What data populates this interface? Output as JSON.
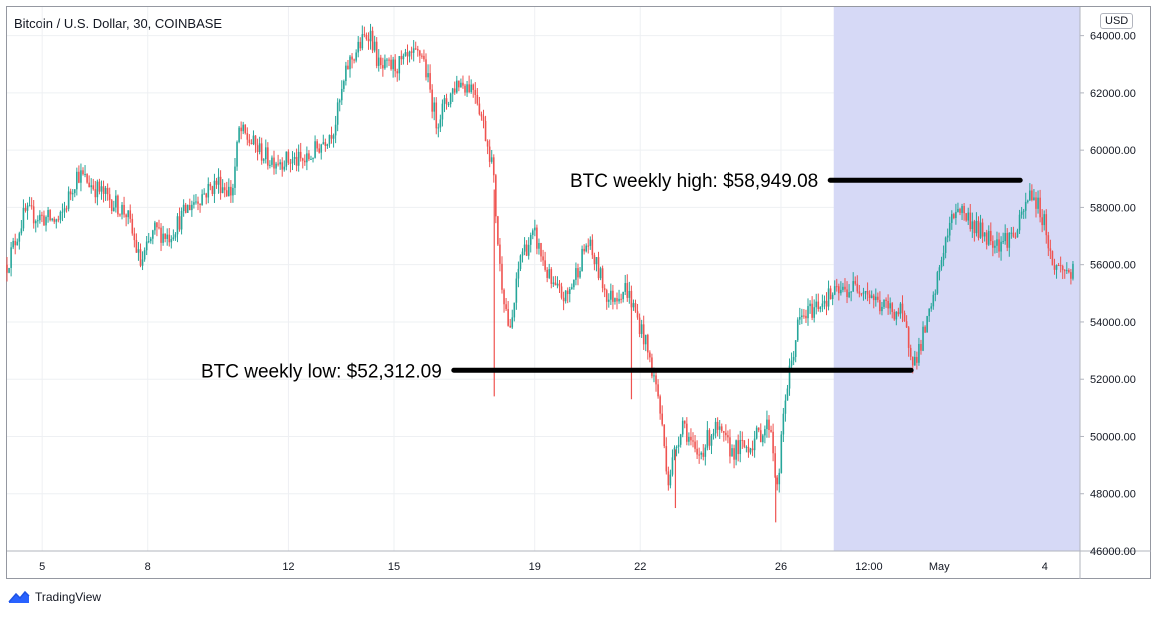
{
  "header": {
    "title": "Bitcoin / U.S. Dollar, 30, COINBASE",
    "currency": "USD"
  },
  "branding": {
    "name": "TradingView"
  },
  "colors": {
    "up": "#26a69a",
    "down": "#ef5350",
    "highlight": "#d6d9f6",
    "grid": "#eef0f3"
  },
  "chart_data": {
    "type": "candlestick",
    "title": "Bitcoin / U.S. Dollar, 30, COINBASE",
    "ylim": [
      46000,
      65000
    ],
    "y_ticks": [
      46000,
      48000,
      50000,
      52000,
      54000,
      56000,
      58000,
      60000,
      62000,
      64000
    ],
    "y_tick_labels": [
      "46000.00",
      "48000.00",
      "50000.00",
      "52000.00",
      "54000.00",
      "56000.00",
      "58000.00",
      "60000.00",
      "62000.00",
      "64000.00"
    ],
    "x_domain": [
      0,
      30.5
    ],
    "x_ticks": [
      {
        "label": "5",
        "t": 1
      },
      {
        "label": "8",
        "t": 4
      },
      {
        "label": "12",
        "t": 8
      },
      {
        "label": "15",
        "t": 11
      },
      {
        "label": "19",
        "t": 15
      },
      {
        "label": "22",
        "t": 18
      },
      {
        "label": "26",
        "t": 22
      },
      {
        "label": "12:00",
        "t": 24.5
      },
      {
        "label": "May",
        "t": 26.5
      },
      {
        "label": "4",
        "t": 29.5
      }
    ],
    "highlight_range": [
      23.5,
      30.5
    ],
    "price_path": [
      [
        0,
        56000
      ],
      [
        0.5,
        57800
      ],
      [
        1.5,
        57500
      ],
      [
        2,
        59200
      ],
      [
        2.6,
        58600
      ],
      [
        3.4,
        57800
      ],
      [
        3.8,
        56000
      ],
      [
        4.2,
        57200
      ],
      [
        4.6,
        57000
      ],
      [
        5.2,
        58100
      ],
      [
        6,
        58900
      ],
      [
        6.4,
        58500
      ],
      [
        6.6,
        60700
      ],
      [
        7.4,
        59700
      ],
      [
        8.5,
        59600
      ],
      [
        9.3,
        60800
      ],
      [
        9.7,
        63000
      ],
      [
        10.3,
        64200
      ],
      [
        10.6,
        62800
      ],
      [
        11.2,
        63000
      ],
      [
        11.8,
        63400
      ],
      [
        12.2,
        61000
      ],
      [
        12.8,
        62400
      ],
      [
        13.3,
        62200
      ],
      [
        13.8,
        59500
      ],
      [
        14,
        56000
      ],
      [
        14.3,
        53500
      ],
      [
        14.6,
        56400
      ],
      [
        15,
        57000
      ],
      [
        15.5,
        55200
      ],
      [
        15.9,
        54800
      ],
      [
        16.5,
        56800
      ],
      [
        17.1,
        54800
      ],
      [
        17.6,
        55200
      ],
      [
        18.1,
        53500
      ],
      [
        18.5,
        51500
      ],
      [
        18.8,
        48500
      ],
      [
        19.2,
        50600
      ],
      [
        19.6,
        49200
      ],
      [
        20.1,
        50300
      ],
      [
        20.6,
        49500
      ],
      [
        21.1,
        49700
      ],
      [
        21.7,
        50500
      ],
      [
        21.9,
        48000
      ],
      [
        22.1,
        51200
      ],
      [
        22.5,
        54000
      ],
      [
        23.2,
        54800
      ],
      [
        23.6,
        55000
      ],
      [
        24.3,
        55300
      ],
      [
        24.8,
        54600
      ],
      [
        25.4,
        54300
      ],
      [
        25.8,
        52600
      ],
      [
        26.3,
        54500
      ],
      [
        26.6,
        56500
      ],
      [
        27,
        58100
      ],
      [
        27.6,
        57200
      ],
      [
        28.2,
        56800
      ],
      [
        28.7,
        57100
      ],
      [
        29.1,
        58600
      ],
      [
        29.5,
        57500
      ],
      [
        29.7,
        56000
      ],
      [
        30.3,
        55700
      ]
    ],
    "spikes": [
      {
        "t": 13.85,
        "low": 51400
      },
      {
        "t": 17.75,
        "low": 51300
      },
      {
        "t": 21.85,
        "low": 47000
      },
      {
        "t": 19.0,
        "low": 47500
      }
    ],
    "annotations": [
      {
        "label": "BTC weekly high: $58,949.08",
        "value": 58949.08,
        "t_start": 23.4,
        "t_end": 28.8
      },
      {
        "label": "BTC weekly low: $52,312.09",
        "value": 52312.09,
        "t_start": 12.7,
        "t_end": 25.7
      }
    ]
  }
}
